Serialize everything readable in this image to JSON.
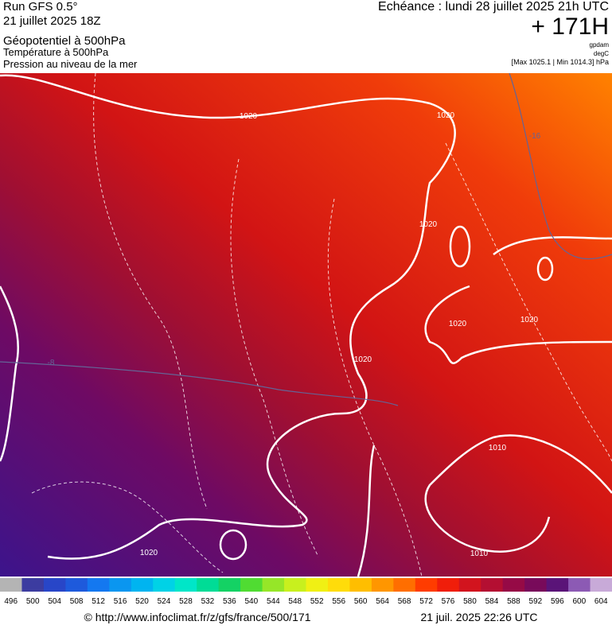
{
  "header": {
    "left": [
      "Run GFS 0.5°",
      "21 juillet 2025 18Z",
      "Géopotentiel à 500hPa",
      "Température à 500hPa",
      "Pression au niveau de la mer"
    ],
    "right": {
      "echeance": "Echéance : lundi 28 juillet 2025 21h UTC",
      "hour": "+ 171H",
      "units": [
        "gpdam",
        "degC",
        "[Max 1025.1 | Min 1014.3] hPa"
      ]
    }
  },
  "map": {
    "labels": [
      "1020",
      "1020",
      "1020",
      "1020",
      "1020",
      "1020",
      "1020",
      "1010",
      "1010",
      "-16",
      "-8"
    ]
  },
  "legend": {
    "items": [
      {
        "label": "496",
        "color": "#b4b4b4"
      },
      {
        "label": "500",
        "color": "#3c3ca0"
      },
      {
        "label": "504",
        "color": "#2846c8"
      },
      {
        "label": "508",
        "color": "#1e5adc"
      },
      {
        "label": "512",
        "color": "#1478f0"
      },
      {
        "label": "516",
        "color": "#0a96f0"
      },
      {
        "label": "520",
        "color": "#00b4f0"
      },
      {
        "label": "524",
        "color": "#00d2e6"
      },
      {
        "label": "528",
        "color": "#00e6c8"
      },
      {
        "label": "532",
        "color": "#00dc96"
      },
      {
        "label": "536",
        "color": "#14d264"
      },
      {
        "label": "540",
        "color": "#50dc32"
      },
      {
        "label": "544",
        "color": "#96e628"
      },
      {
        "label": "548",
        "color": "#c8f01e"
      },
      {
        "label": "552",
        "color": "#f0f014"
      },
      {
        "label": "556",
        "color": "#ffdc0a"
      },
      {
        "label": "560",
        "color": "#ffbe00"
      },
      {
        "label": "564",
        "color": "#ff9600"
      },
      {
        "label": "568",
        "color": "#ff6e00"
      },
      {
        "label": "572",
        "color": "#ff3c00"
      },
      {
        "label": "576",
        "color": "#f01e0a"
      },
      {
        "label": "580",
        "color": "#d2141e"
      },
      {
        "label": "584",
        "color": "#b40f32"
      },
      {
        "label": "588",
        "color": "#960a46"
      },
      {
        "label": "592",
        "color": "#780a5a"
      },
      {
        "label": "596",
        "color": "#5a1478"
      },
      {
        "label": "600",
        "color": "#8c5ab4"
      },
      {
        "label": "604",
        "color": "#c8aad8"
      }
    ]
  },
  "footer": {
    "url": "© http://www.infoclimat.fr/z/gfs/france/500/171",
    "date": "21 juil. 2025 22:26 UTC"
  }
}
